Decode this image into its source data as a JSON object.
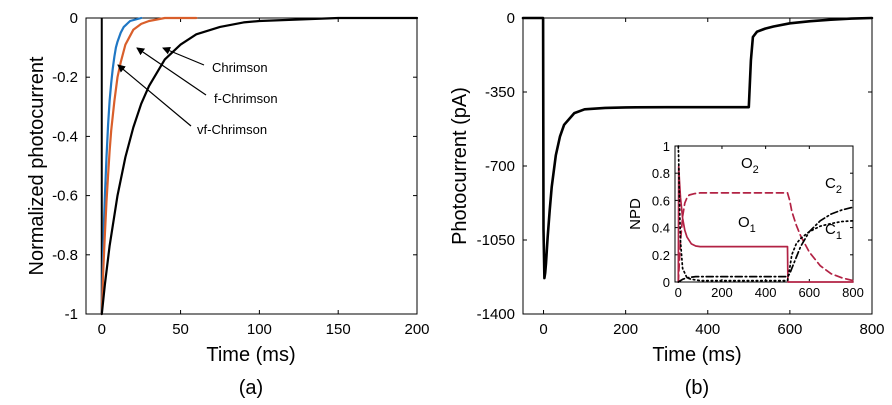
{
  "figure": {
    "panel_a_label": "(a)",
    "panel_b_label": "(b)"
  },
  "chart_data": [
    {
      "type": "line",
      "panel": "(a)",
      "xlabel": "Time (ms)",
      "ylabel": "Normalized photocurrent",
      "xlim": [
        -10,
        200
      ],
      "ylim": [
        -1,
        0
      ],
      "xticks": [
        0,
        50,
        100,
        150,
        200
      ],
      "yticks": [
        0,
        -0.2,
        -0.4,
        -0.6,
        -0.8,
        -1
      ],
      "ytick_labels": [
        "0",
        "-0.2",
        "-0.4",
        "-0.6",
        "-0.8",
        "-1"
      ],
      "grid": false,
      "legend": "none (arrow annotations)",
      "series": [
        {
          "name": "vf-Chrimson",
          "color": "#1f77c4",
          "x": [
            0,
            0.5,
            1,
            1.5,
            2,
            3,
            4,
            5,
            6,
            7,
            8,
            9,
            10,
            12,
            14,
            18,
            25
          ],
          "y": [
            -1,
            -0.88,
            -0.78,
            -0.68,
            -0.6,
            -0.47,
            -0.36,
            -0.28,
            -0.22,
            -0.17,
            -0.13,
            -0.1,
            -0.08,
            -0.05,
            -0.03,
            -0.01,
            0
          ]
        },
        {
          "name": "f-Chrimson",
          "color": "#d95f2b",
          "x": [
            0,
            1,
            2,
            3,
            4,
            5,
            6,
            8,
            10,
            12,
            15,
            20,
            25,
            30,
            40,
            50,
            60
          ],
          "y": [
            -1,
            -0.85,
            -0.73,
            -0.62,
            -0.53,
            -0.45,
            -0.38,
            -0.28,
            -0.2,
            -0.15,
            -0.09,
            -0.04,
            -0.02,
            -0.01,
            0,
            0,
            0
          ]
        },
        {
          "name": "Chrimson",
          "color": "#000000",
          "x": [
            0,
            2,
            5,
            10,
            15,
            20,
            25,
            30,
            40,
            50,
            60,
            75,
            90,
            100,
            125,
            150,
            175,
            200
          ],
          "y": [
            -1,
            -0.9,
            -0.77,
            -0.6,
            -0.47,
            -0.37,
            -0.29,
            -0.23,
            -0.14,
            -0.09,
            -0.055,
            -0.03,
            -0.015,
            -0.01,
            -0.005,
            0,
            0,
            0
          ]
        }
      ],
      "annotations": [
        {
          "text": "Chrimson"
        },
        {
          "text": "f-Chrimson"
        },
        {
          "text": "vf-Chrimson"
        }
      ]
    },
    {
      "type": "line",
      "panel": "(b)",
      "xlabel": "Time (ms)",
      "ylabel": "Photocurrent (pA)",
      "xlim": [
        -50,
        800
      ],
      "ylim": [
        -1400,
        0
      ],
      "xticks": [
        0,
        200,
        400,
        600,
        800
      ],
      "yticks": [
        0,
        -350,
        -700,
        -1050,
        -1400
      ],
      "grid": false,
      "series": [
        {
          "name": "",
          "color": "#000000",
          "x": [
            -50,
            -1,
            0,
            2,
            4,
            6,
            8,
            10,
            15,
            20,
            30,
            40,
            50,
            75,
            100,
            150,
            200,
            300,
            400,
            500,
            505,
            510,
            520,
            540,
            560,
            600,
            650,
            700,
            750,
            800
          ],
          "y": [
            0,
            0,
            -1000,
            -1230,
            -1205,
            -1160,
            -1100,
            -1040,
            -910,
            -800,
            -650,
            -560,
            -505,
            -450,
            -432,
            -425,
            -423,
            -422,
            -422,
            -422,
            -200,
            -90,
            -65,
            -50,
            -40,
            -25,
            -15,
            -8,
            -3,
            0
          ]
        }
      ],
      "inset": {
        "type": "line",
        "ylabel": "NPD",
        "xlim": [
          -15,
          800
        ],
        "ylim": [
          0,
          1
        ],
        "xticks": [
          0,
          200,
          400,
          600,
          800
        ],
        "yticks": [
          0,
          0.2,
          0.4,
          0.6,
          0.8,
          1
        ],
        "ytick_labels": [
          "0",
          "0.2",
          "0.4",
          "0.6",
          "0.8",
          "1"
        ],
        "series": [
          {
            "label": "O",
            "sub": "1",
            "color": "#b22244",
            "style": "solid",
            "x": [
              0,
              2,
              5,
              10,
              20,
              30,
              40,
              60,
              80,
              100,
              150,
              200,
              300,
              400,
              500,
              502,
              800
            ],
            "y": [
              0,
              0.85,
              0.75,
              0.62,
              0.47,
              0.38,
              0.33,
              0.28,
              0.265,
              0.26,
              0.26,
              0.26,
              0.26,
              0.26,
              0.26,
              0,
              0
            ]
          },
          {
            "label": "O",
            "sub": "2",
            "color": "#b22244",
            "style": "dashed",
            "x": [
              0,
              5,
              10,
              20,
              30,
              40,
              50,
              75,
              100,
              150,
              500,
              510,
              520,
              540,
              560,
              600,
              650,
              700,
              750,
              800
            ],
            "y": [
              0,
              0.15,
              0.3,
              0.48,
              0.58,
              0.62,
              0.64,
              0.65,
              0.655,
              0.655,
              0.655,
              0.6,
              0.52,
              0.42,
              0.34,
              0.22,
              0.12,
              0.06,
              0.03,
              0.01
            ]
          },
          {
            "label": "C",
            "sub": "1",
            "color": "#000000",
            "style": "dotted",
            "x": [
              0,
              2,
              5,
              10,
              20,
              40,
              60,
              100,
              200,
              500,
              510,
              520,
              540,
              560,
              600,
              650,
              700,
              750,
              800
            ],
            "y": [
              1,
              0.9,
              0.6,
              0.3,
              0.1,
              0.03,
              0.02,
              0.01,
              0.01,
              0.01,
              0.1,
              0.2,
              0.28,
              0.32,
              0.37,
              0.41,
              0.43,
              0.445,
              0.45
            ]
          },
          {
            "label": "C",
            "sub": "2",
            "color": "#000000",
            "style": "dashdot",
            "x": [
              0,
              10,
              20,
              40,
              60,
              80,
              100,
              500,
              510,
              520,
              540,
              560,
              600,
              650,
              700,
              750,
              800
            ],
            "y": [
              0,
              0.01,
              0.02,
              0.03,
              0.035,
              0.04,
              0.04,
              0.04,
              0.06,
              0.1,
              0.18,
              0.26,
              0.37,
              0.45,
              0.5,
              0.53,
              0.55
            ]
          }
        ]
      }
    }
  ]
}
